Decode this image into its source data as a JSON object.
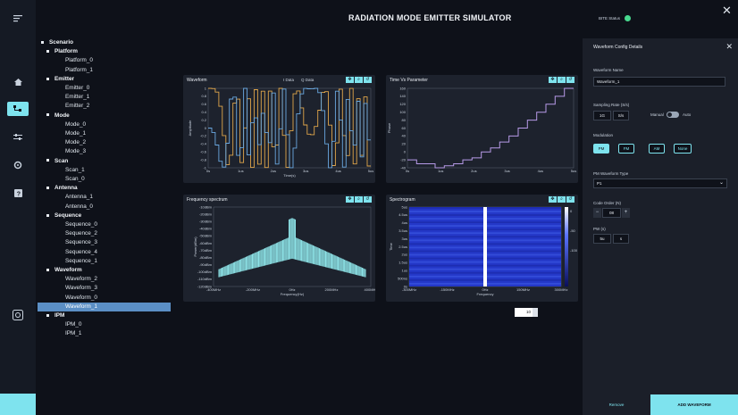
{
  "app": {
    "title": "RADIATION MODE EMITTER SIMULATOR",
    "bite_status_label": "BITE Status",
    "bite_color": "#48d98f"
  },
  "rail": {
    "icons": [
      "menu-icon",
      "home-icon",
      "scenario-icon",
      "parameters-icon",
      "settings-icon",
      "help-icon",
      "export-icon"
    ]
  },
  "tree": {
    "root": "Scenario",
    "groups": [
      {
        "label": "Platform",
        "children": [
          "Platform_0",
          "Platform_1"
        ]
      },
      {
        "label": "Emitter",
        "children": [
          "Emitter_0",
          "Emitter_1",
          "Emitter_2"
        ]
      },
      {
        "label": "Mode",
        "children": [
          "Mode_0",
          "Mode_1",
          "Mode_2",
          "Mode_3"
        ]
      },
      {
        "label": "Scan",
        "children": [
          "Scan_1",
          "Scan_0"
        ]
      },
      {
        "label": "Antenna",
        "children": [
          "Antenna_1",
          "Antenna_0"
        ]
      },
      {
        "label": "Sequence",
        "children": [
          "Sequence_0",
          "Sequence_2",
          "Sequence_3",
          "Sequence_4",
          "Sequence_1"
        ]
      },
      {
        "label": "Waveform",
        "children": [
          "Waveform_2",
          "Waveform_3",
          "Waveform_0",
          "Waveform_1"
        ]
      },
      {
        "label": "IPM",
        "children": [
          "IPM_0",
          "IPM_1"
        ]
      }
    ],
    "selected": "Waveform_1"
  },
  "panels": {
    "waveform": {
      "title": "Waveform",
      "legend": [
        "I Data",
        "Q Data"
      ],
      "colors": {
        "i": "#e0a64b",
        "q": "#6aa8e0"
      },
      "ylabel": "Amplitude",
      "xlabel": "Time(s)",
      "y_ticks": [
        "1",
        "0.8",
        "0.6",
        "0.4",
        "0.2",
        "0",
        "-0.2",
        "-0.4",
        "-0.6",
        "-0.8",
        "-1"
      ],
      "x_ticks": [
        "0s",
        "1us",
        "2us",
        "3us",
        "4us",
        "5us"
      ]
    },
    "time_vs_param": {
      "title": "Time Vs Parameter",
      "ylabel": "Phase",
      "y_ticks": [
        "160",
        "140",
        "120",
        "100",
        "80",
        "60",
        "40",
        "20",
        "0",
        "-20",
        "-40"
      ],
      "x_ticks": [
        "0s",
        "1us",
        "2us",
        "3us",
        "4us",
        "5us"
      ],
      "color": "#b79ae8"
    },
    "spectrum": {
      "title": "Frequency spectrum",
      "ylabel": "Power(dBm)",
      "xlabel": "Frequency(Hz)",
      "y_ticks": [
        "-10dBm",
        "-20dBm",
        "-30dBm",
        "-40dBm",
        "-50dBm",
        "-60dBm",
        "-70dBm",
        "-80dBm",
        "-90dBm",
        "-100dBm",
        "-110dBm",
        "-120dBm"
      ],
      "x_ticks": [
        "-400MHz",
        "-200MHz",
        "0Hz",
        "200MHz",
        "400MHz"
      ],
      "color": "#8fe6ea"
    },
    "spectrogram": {
      "title": "Spectrogram",
      "ylabel": "Time",
      "xlabel": "Frequency",
      "y_ticks": [
        "5us",
        "4.5us",
        "4us",
        "3.5us",
        "3us",
        "2.5us",
        "2us",
        "1.5us",
        "1us",
        "500ns",
        "0s"
      ],
      "x_ticks": [
        "-300MHz",
        "-150MHz",
        "0Hz",
        "150MHz",
        "300MHz"
      ],
      "cbar_ticks": [
        "0",
        "-50",
        "-100"
      ]
    },
    "tool_icons": [
      "pan-icon",
      "zoom-icon",
      "reset-icon"
    ]
  },
  "page_control": {
    "value": "10"
  },
  "config": {
    "title": "Waveform Config Details",
    "waveform_name_label": "Waveform Name",
    "waveform_name_value": "Waveform_1",
    "sampling_rate_label": "Sampling Rate (S/s)",
    "sampling_rate_value": "1G",
    "sampling_rate_unit": "S/s",
    "manual_label": "Manual",
    "auto_label": "Auto",
    "modulation_label": "Modulation",
    "modulation_options": [
      "PM",
      "FM",
      "AM",
      "None"
    ],
    "modulation_selected": "PM",
    "pm_type_label": "PM Waveform Type",
    "pm_type_value": "P1",
    "code_order_label": "Code Order (N)",
    "code_order_value": "08",
    "pw_label": "PW (s)",
    "pw_value": "5u",
    "pw_unit": "s",
    "remove_label": "Remove",
    "add_label": "ADD WAVEFORM"
  }
}
